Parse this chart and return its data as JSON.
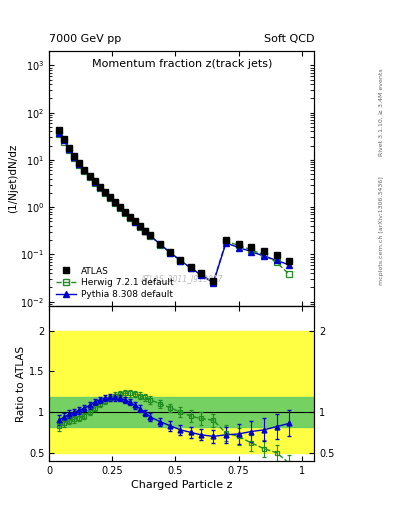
{
  "title_top_left": "7000 GeV pp",
  "title_top_right": "Soft QCD",
  "plot_title": "Momentum fraction z(track jets)",
  "ylabel_main": "(1/Njet)dN/dz",
  "ylabel_ratio": "Ratio to ATLAS",
  "xlabel": "Charged Particle z",
  "right_label_top": "Rivet 3.1.10, ≥ 3.4M events",
  "right_label_bottom": "mcplots.cern.ch [arXiv:1306.3436]",
  "watermark": "ATLAS_2011_I919017",
  "xlim": [
    0.0,
    1.05
  ],
  "ylim_main": [
    0.008,
    2000
  ],
  "ylim_ratio": [
    0.4,
    2.3
  ],
  "atlas_x": [
    0.04,
    0.06,
    0.08,
    0.1,
    0.12,
    0.14,
    0.16,
    0.18,
    0.2,
    0.22,
    0.24,
    0.26,
    0.28,
    0.3,
    0.32,
    0.34,
    0.36,
    0.38,
    0.4,
    0.44,
    0.48,
    0.52,
    0.56,
    0.6,
    0.65,
    0.7,
    0.75,
    0.8,
    0.85,
    0.9,
    0.95
  ],
  "atlas_y": [
    42,
    28,
    18,
    12,
    8.5,
    6.2,
    4.6,
    3.5,
    2.7,
    2.1,
    1.65,
    1.3,
    1.02,
    0.8,
    0.63,
    0.5,
    0.4,
    0.32,
    0.255,
    0.165,
    0.11,
    0.075,
    0.055,
    0.04,
    0.028,
    0.2,
    0.17,
    0.145,
    0.12,
    0.095,
    0.072
  ],
  "herwig_x": [
    0.04,
    0.06,
    0.08,
    0.1,
    0.12,
    0.14,
    0.16,
    0.18,
    0.2,
    0.22,
    0.24,
    0.26,
    0.28,
    0.3,
    0.32,
    0.34,
    0.36,
    0.38,
    0.4,
    0.44,
    0.48,
    0.52,
    0.56,
    0.6,
    0.65,
    0.7,
    0.75,
    0.8,
    0.85,
    0.9,
    0.95
  ],
  "herwig_y": [
    36,
    24,
    16,
    11,
    7.8,
    5.7,
    4.3,
    3.3,
    2.55,
    2.0,
    1.57,
    1.24,
    0.975,
    0.765,
    0.603,
    0.477,
    0.382,
    0.306,
    0.246,
    0.16,
    0.108,
    0.074,
    0.052,
    0.038,
    0.026,
    0.19,
    0.155,
    0.125,
    0.098,
    0.068,
    0.038
  ],
  "pythia_x": [
    0.04,
    0.06,
    0.08,
    0.1,
    0.12,
    0.14,
    0.16,
    0.18,
    0.2,
    0.22,
    0.24,
    0.26,
    0.28,
    0.3,
    0.32,
    0.34,
    0.36,
    0.38,
    0.4,
    0.44,
    0.48,
    0.52,
    0.56,
    0.6,
    0.65,
    0.7,
    0.75,
    0.8,
    0.85,
    0.9,
    0.95
  ],
  "pythia_y": [
    38,
    26,
    17,
    11.5,
    8.2,
    6.0,
    4.5,
    3.45,
    2.66,
    2.08,
    1.63,
    1.29,
    1.015,
    0.797,
    0.627,
    0.496,
    0.394,
    0.315,
    0.252,
    0.163,
    0.109,
    0.074,
    0.052,
    0.037,
    0.025,
    0.175,
    0.14,
    0.115,
    0.092,
    0.075,
    0.06
  ],
  "herwig_ratio": [
    0.83,
    0.86,
    0.89,
    0.91,
    0.93,
    0.95,
    1.0,
    1.05,
    1.1,
    1.14,
    1.17,
    1.2,
    1.22,
    1.23,
    1.23,
    1.22,
    1.2,
    1.18,
    1.15,
    1.1,
    1.05,
    1.0,
    0.95,
    0.92,
    0.9,
    0.74,
    0.7,
    0.62,
    0.55,
    0.5,
    0.37
  ],
  "pythia_ratio": [
    0.9,
    0.94,
    0.97,
    1.0,
    1.02,
    1.05,
    1.08,
    1.12,
    1.15,
    1.17,
    1.18,
    1.18,
    1.17,
    1.15,
    1.12,
    1.08,
    1.04,
    0.99,
    0.94,
    0.88,
    0.83,
    0.78,
    0.75,
    0.72,
    0.7,
    0.72,
    0.73,
    0.76,
    0.78,
    0.82,
    0.86
  ],
  "pythia_ratio_err": [
    0.06,
    0.05,
    0.05,
    0.04,
    0.04,
    0.04,
    0.04,
    0.04,
    0.04,
    0.04,
    0.04,
    0.04,
    0.04,
    0.04,
    0.04,
    0.04,
    0.04,
    0.04,
    0.05,
    0.05,
    0.06,
    0.06,
    0.07,
    0.07,
    0.08,
    0.1,
    0.12,
    0.13,
    0.14,
    0.15,
    0.16
  ],
  "herwig_ratio_err": [
    0.06,
    0.05,
    0.04,
    0.04,
    0.04,
    0.04,
    0.04,
    0.04,
    0.04,
    0.04,
    0.04,
    0.04,
    0.04,
    0.04,
    0.04,
    0.04,
    0.04,
    0.04,
    0.05,
    0.05,
    0.05,
    0.06,
    0.07,
    0.08,
    0.08,
    0.1,
    0.1,
    0.1,
    0.1,
    0.1,
    0.1
  ],
  "atlas_color": "#000000",
  "herwig_color": "#228B22",
  "pythia_color": "#0000cc",
  "background_color": "#ffffff",
  "yellow_low": 0.5,
  "yellow_high": 2.0,
  "green_low": 0.82,
  "green_high": 1.18
}
